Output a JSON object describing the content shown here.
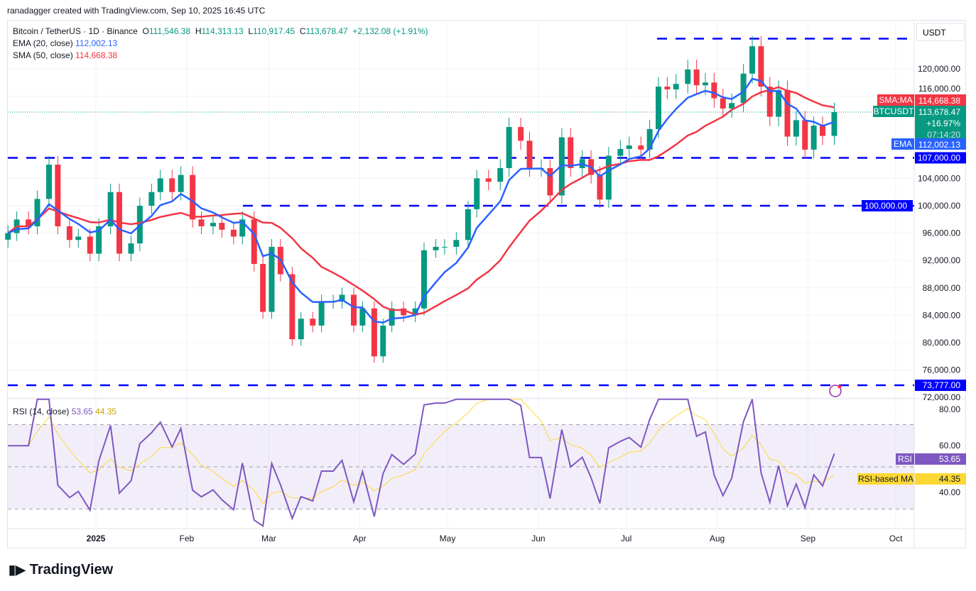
{
  "credit": "ranadagger created with TradingView.com, Sep 10, 2025 16:45 UTC",
  "header": {
    "symbol": "Bitcoin / TetherUS · 1D · Binance",
    "o_label": "O",
    "open": "111,546.38",
    "h_label": "H",
    "high": "114,313.13",
    "l_label": "L",
    "low": "110,917.45",
    "c_label": "C",
    "close": "113,678.47",
    "change": "+2,132.08 (+1.91%)",
    "ema_label": "EMA (20, close)",
    "ema_value": "112,002.13",
    "sma_label": "SMA (50, close)",
    "sma_value": "114,668.38"
  },
  "currency": "USDT",
  "rsi_legend": {
    "label": "RSI (14, close)",
    "rsi": "53.65",
    "ma": "44.35"
  },
  "logo": "TradingView",
  "colors": {
    "up": "#089981",
    "down": "#f23645",
    "ema": "#2962ff",
    "sma": "#f23645",
    "levels": "#0000ff",
    "rsi": "#7e57c2",
    "rsi_ma": "#fdd835"
  },
  "chart_data": {
    "type": "candlestick",
    "ylim": [
      72000,
      125500
    ],
    "y_ticks": [
      "120,000.00",
      "116,000.00",
      "104,000.00",
      "100,000.00",
      "96,000.00",
      "92,000.00",
      "88,000.00",
      "84,000.00",
      "80,000.00",
      "76,000.00",
      "72,000.00"
    ],
    "y_tick_values": [
      120000,
      116000,
      104000,
      100000,
      96000,
      92000,
      88000,
      84000,
      80000,
      76000,
      72000
    ],
    "x_ticks": [
      {
        "label": "2025",
        "date": "2025-01-01"
      },
      {
        "label": "Feb",
        "date": "2025-02-01"
      },
      {
        "label": "Mar",
        "date": "2025-03-01"
      },
      {
        "label": "Apr",
        "date": "2025-04-01"
      },
      {
        "label": "May",
        "date": "2025-05-01"
      },
      {
        "label": "Jun",
        "date": "2025-06-01"
      },
      {
        "label": "Jul",
        "date": "2025-07-01"
      },
      {
        "label": "Aug",
        "date": "2025-08-01"
      },
      {
        "label": "Sep",
        "date": "2025-09-01"
      },
      {
        "label": "Oct",
        "date": "2025-10-01"
      }
    ],
    "dates": [
      "2024-12-02",
      "2024-12-05",
      "2024-12-09",
      "2024-12-12",
      "2024-12-16",
      "2024-12-19",
      "2024-12-23",
      "2024-12-26",
      "2024-12-30",
      "2025-01-02",
      "2025-01-06",
      "2025-01-09",
      "2025-01-13",
      "2025-01-16",
      "2025-01-20",
      "2025-01-23",
      "2025-01-27",
      "2025-01-30",
      "2025-02-03",
      "2025-02-06",
      "2025-02-10",
      "2025-02-13",
      "2025-02-17",
      "2025-02-20",
      "2025-02-24",
      "2025-02-27",
      "2025-03-02",
      "2025-03-05",
      "2025-03-09",
      "2025-03-12",
      "2025-03-16",
      "2025-03-19",
      "2025-03-23",
      "2025-03-26",
      "2025-03-30",
      "2025-04-02",
      "2025-04-06",
      "2025-04-09",
      "2025-04-12",
      "2025-04-16",
      "2025-04-20",
      "2025-04-23",
      "2025-04-27",
      "2025-04-30",
      "2025-05-04",
      "2025-05-08",
      "2025-05-11",
      "2025-05-15",
      "2025-05-19",
      "2025-05-22",
      "2025-05-26",
      "2025-05-29",
      "2025-06-02",
      "2025-06-05",
      "2025-06-09",
      "2025-06-12",
      "2025-06-16",
      "2025-06-19",
      "2025-06-22",
      "2025-06-25",
      "2025-06-29",
      "2025-07-02",
      "2025-07-06",
      "2025-07-09",
      "2025-07-12",
      "2025-07-15",
      "2025-07-18",
      "2025-07-22",
      "2025-07-25",
      "2025-07-28",
      "2025-07-31",
      "2025-08-03",
      "2025-08-06",
      "2025-08-10",
      "2025-08-13",
      "2025-08-16",
      "2025-08-19",
      "2025-08-22",
      "2025-08-25",
      "2025-08-28",
      "2025-08-31",
      "2025-09-03",
      "2025-09-06",
      "2025-09-10"
    ],
    "close": [
      96000,
      98000,
      97000,
      101000,
      106000,
      97000,
      95000,
      95500,
      93000,
      97000,
      102000,
      93000,
      94500,
      100000,
      102000,
      104000,
      102000,
      104500,
      98000,
      97000,
      97500,
      96500,
      95500,
      98000,
      91500,
      84500,
      94000,
      90000,
      80500,
      83500,
      82500,
      86000,
      86000,
      87000,
      82500,
      85000,
      78000,
      82500,
      85000,
      84000,
      85000,
      93500,
      94000,
      94000,
      95000,
      99500,
      104000,
      103500,
      105500,
      111500,
      109500,
      105500,
      105500,
      101500,
      110000,
      105500,
      106800,
      104500,
      100900,
      107300,
      108300,
      108800,
      108200,
      111200,
      117400,
      117000,
      117800,
      119900,
      117600,
      118000,
      115700,
      114200,
      115000,
      119300,
      123300,
      117400,
      113000,
      116900,
      110100,
      112500,
      108200,
      111700,
      110200,
      113678.47
    ],
    "levels": [
      {
        "value": 124400,
        "label": ""
      },
      {
        "value": 107000,
        "label": "107,000.00"
      },
      {
        "value": 100000,
        "label": "100,000.00"
      },
      {
        "value": 73777,
        "label": "73,777.00"
      }
    ],
    "price_tags": {
      "sma": {
        "name": "SMA:MA",
        "value": "114,668.38"
      },
      "last": {
        "name": "BTCUSDT",
        "value": "113,678.47",
        "change": "+16.97%",
        "countdown": "07:14:20"
      },
      "ema": {
        "name": "EMA",
        "value": "112,002.13"
      }
    },
    "rsi": {
      "ylim": [
        20,
        85
      ],
      "y_ticks": [
        "80.00",
        "60.00",
        "40.00"
      ],
      "y_tick_values": [
        80,
        60,
        40
      ],
      "bands": [
        70,
        50,
        30
      ],
      "tag": "RSI",
      "value": "53.65",
      "ma_tag": "RSI-based MA",
      "ma_value": "44.35"
    }
  }
}
